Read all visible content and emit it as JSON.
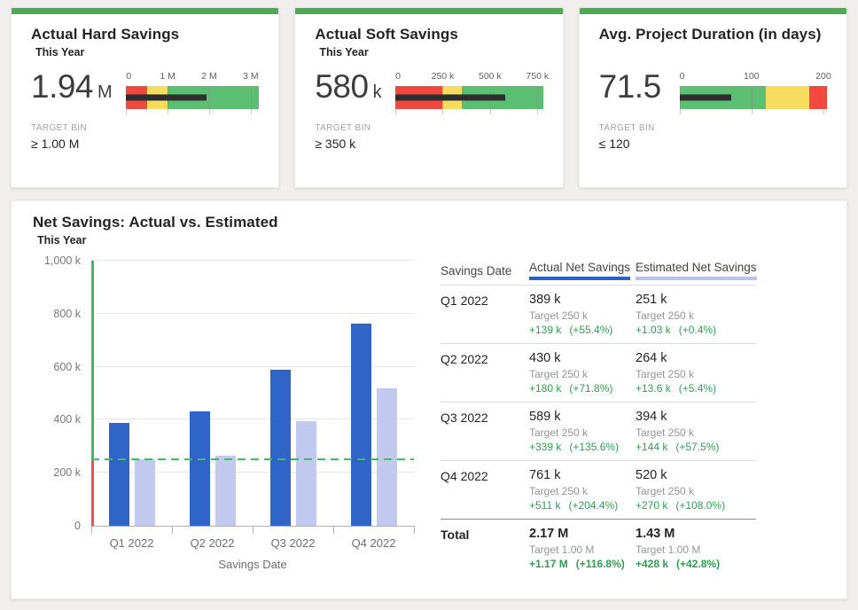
{
  "theme": {
    "accent_green": "#48ad53",
    "bullet_red": "#f2483e",
    "bullet_yellow": "#f6dc5f",
    "bullet_green": "#5abe73",
    "measure_bar": "#2d2d2d",
    "actual_blue": "#3164c8",
    "estimated_blue": "#c1c9ee",
    "target_line_green": "#44ba66",
    "axis_above_target_green": "#44b764",
    "axis_below_target_red": "#f15050",
    "delta_green": "#2f9e52",
    "header_underline_actual": "#2e5ec6",
    "header_underline_estimated": "#b9c3ea"
  },
  "kpi_cards": [
    {
      "title": "Actual Hard Savings",
      "subtitle": "This Year",
      "value": "1.94",
      "unit": "M",
      "target_bin_label": "TARGET BIN",
      "target_bin": "≥ 1.00 M"
    },
    {
      "title": "Actual Soft Savings",
      "subtitle": "This Year",
      "value": "580",
      "unit": "k",
      "target_bin_label": "TARGET BIN",
      "target_bin": "≥ 350 k"
    },
    {
      "title": "Avg. Project Duration (in days)",
      "subtitle": "",
      "value": "71.5",
      "unit": "",
      "target_bin_label": "TARGET BIN",
      "target_bin": "≤ 120"
    }
  ],
  "chart_data": [
    {
      "type": "bullet",
      "title": "Actual Hard Savings",
      "value": 1940000,
      "value_label": "1.94 M",
      "max": 3200000,
      "axis_ticks": [
        0,
        1000000,
        2000000,
        3000000
      ],
      "tick_labels": [
        "0",
        "1 M",
        "2 M",
        "3 M"
      ],
      "ranges": [
        {
          "to": 500000,
          "color_key": "bullet_red"
        },
        {
          "to": 1000000,
          "color_key": "bullet_yellow"
        },
        {
          "to": 3200000,
          "color_key": "bullet_green"
        }
      ]
    },
    {
      "type": "bullet",
      "title": "Actual Soft Savings",
      "value": 580000,
      "value_label": "580 k",
      "max": 780000,
      "axis_ticks": [
        0,
        250000,
        500000,
        750000
      ],
      "tick_labels": [
        "0",
        "250 k",
        "500 k",
        "750 k"
      ],
      "ranges": [
        {
          "to": 250000,
          "color_key": "bullet_red"
        },
        {
          "to": 350000,
          "color_key": "bullet_yellow"
        },
        {
          "to": 780000,
          "color_key": "bullet_green"
        }
      ]
    },
    {
      "type": "bullet",
      "title": "Avg. Project Duration (in days)",
      "value": 71.5,
      "value_label": "71.5",
      "max": 205,
      "axis_ticks": [
        0,
        100,
        200
      ],
      "tick_labels": [
        "0",
        "100",
        "200"
      ],
      "ranges": [
        {
          "to": 120,
          "color_key": "bullet_green"
        },
        {
          "to": 180,
          "color_key": "bullet_yellow"
        },
        {
          "to": 205,
          "color_key": "bullet_red"
        }
      ]
    },
    {
      "type": "bar",
      "title": "Net Savings: Actual vs. Estimated",
      "subtitle": "This Year",
      "categories": [
        "Q1 2022",
        "Q2 2022",
        "Q3 2022",
        "Q4 2022"
      ],
      "series": [
        {
          "name": "Actual Net Savings",
          "color_key": "actual_blue",
          "values": [
            389000,
            430000,
            589000,
            761000
          ]
        },
        {
          "name": "Estimated Net Savings",
          "color_key": "estimated_blue",
          "values": [
            251000,
            264000,
            394000,
            520000
          ]
        }
      ],
      "target_line": 250000,
      "xlabel": "Savings Date",
      "ylim": [
        0,
        1000000
      ],
      "yticks": [
        0,
        200000,
        400000,
        600000,
        800000,
        1000000
      ],
      "ytick_labels": [
        "0",
        "200 k",
        "400 k",
        "600 k",
        "800 k",
        "1,000 k"
      ],
      "grid": true,
      "legend_position": "table-headers"
    }
  ],
  "main": {
    "title": "Net Savings: Actual vs. Estimated",
    "subtitle": "This Year",
    "table": {
      "columns": [
        "Savings Date",
        "Actual Net Savings",
        "Estimated Net Savings"
      ],
      "rows": [
        {
          "label": "Q1 2022",
          "actual": {
            "value": "389 k",
            "target": "Target 250 k",
            "delta": "+139 k",
            "delta_pct": "(+55.4%)"
          },
          "estimated": {
            "value": "251 k",
            "target": "Target 250 k",
            "delta": "+1.03 k",
            "delta_pct": "(+0.4%)"
          }
        },
        {
          "label": "Q2 2022",
          "actual": {
            "value": "430 k",
            "target": "Target 250 k",
            "delta": "+180 k",
            "delta_pct": "(+71.8%)"
          },
          "estimated": {
            "value": "264 k",
            "target": "Target 250 k",
            "delta": "+13.6 k",
            "delta_pct": "(+5.4%)"
          }
        },
        {
          "label": "Q3 2022",
          "actual": {
            "value": "589 k",
            "target": "Target 250 k",
            "delta": "+339 k",
            "delta_pct": "(+135.6%)"
          },
          "estimated": {
            "value": "394 k",
            "target": "Target 250 k",
            "delta": "+144 k",
            "delta_pct": "(+57.5%)"
          }
        },
        {
          "label": "Q4 2022",
          "actual": {
            "value": "761 k",
            "target": "Target 250 k",
            "delta": "+511 k",
            "delta_pct": "(+204.4%)"
          },
          "estimated": {
            "value": "520 k",
            "target": "Target 250 k",
            "delta": "+270 k",
            "delta_pct": "(+108.0%)"
          }
        }
      ],
      "total": {
        "label": "Total",
        "actual": {
          "value": "2.17 M",
          "target": "Target 1.00 M",
          "delta": "+1.17 M",
          "delta_pct": "(+116.8%)"
        },
        "estimated": {
          "value": "1.43 M",
          "target": "Target 1.00 M",
          "delta": "+428 k",
          "delta_pct": "(+42.8%)"
        }
      }
    }
  }
}
